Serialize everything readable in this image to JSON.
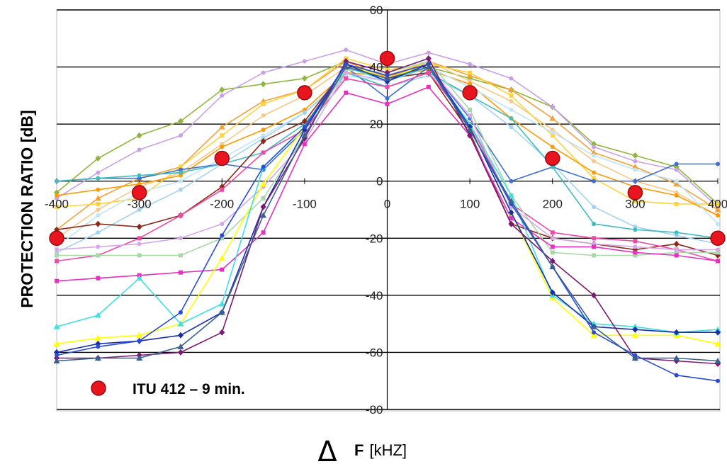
{
  "chart_data": {
    "type": "line",
    "title": "",
    "ylabel": "PROTECTION RATIO [dB]",
    "xlabel_symbol": "Δ",
    "xlabel_var": "F",
    "xlabel_unit": "[kHZ]",
    "xlim": [
      -400,
      400
    ],
    "ylim": [
      -80,
      60
    ],
    "x_ticks": [
      "-400",
      "-300",
      "-200",
      "-100",
      "0",
      "100",
      "200",
      "300",
      "400"
    ],
    "y_ticks": [
      "60",
      "40",
      "20",
      "0",
      "-20",
      "-40",
      "-60",
      "-80"
    ],
    "grid": true,
    "legend": [
      {
        "label": "ITU 412 – 9 min.",
        "color": "#e8141e"
      }
    ],
    "x": [
      -400,
      -350,
      -300,
      -250,
      -200,
      -150,
      -100,
      -50,
      0,
      50,
      100,
      150,
      200,
      250,
      300,
      350,
      400
    ],
    "series": [
      {
        "color": "#8fb63a",
        "marker": "diamond",
        "values": [
          -4,
          8,
          16,
          21,
          32,
          34,
          36,
          42,
          36,
          40,
          36,
          32,
          26,
          13,
          9,
          5,
          -8
        ]
      },
      {
        "color": "#c8a0e6",
        "marker": "circle",
        "values": [
          -6,
          3,
          11,
          16,
          30,
          38,
          42,
          46,
          41,
          45,
          41,
          36,
          26,
          12,
          7,
          4,
          -9
        ]
      },
      {
        "color": "#f4a13a",
        "marker": "triangle",
        "values": [
          -17,
          -6,
          1,
          5,
          19,
          28,
          32,
          42,
          36,
          42,
          37,
          32,
          22,
          10,
          5,
          -1,
          -10
        ]
      },
      {
        "color": "#f7c98a",
        "marker": "circle",
        "values": [
          -20,
          -10,
          -2,
          3,
          13,
          23,
          30,
          40,
          37,
          42,
          35,
          28,
          18,
          7,
          0,
          -4,
          -12
        ]
      },
      {
        "color": "#ffd23c",
        "marker": "square",
        "values": [
          -9,
          -8,
          -6,
          5,
          16,
          27,
          32,
          43,
          39,
          41,
          38,
          30,
          16,
          1,
          -7,
          -8,
          -8
        ]
      },
      {
        "color": "#ff9900",
        "marker": "circle",
        "values": [
          -5,
          -3,
          -1,
          2,
          12,
          18,
          25,
          38,
          37,
          39,
          34,
          22,
          12,
          3,
          -2,
          -5,
          -12
        ]
      },
      {
        "color": "#bfe5f7",
        "marker": "circle",
        "values": [
          -23,
          -12,
          -4,
          0,
          8,
          16,
          24,
          37,
          35,
          40,
          33,
          25,
          17,
          9,
          4,
          0,
          -15
        ]
      },
      {
        "color": "#a3d2f0",
        "marker": "circle",
        "values": [
          -25,
          -18,
          -10,
          -3,
          6,
          15,
          24,
          36,
          33,
          37,
          30,
          19,
          6,
          -9,
          -16,
          -19,
          -22
        ]
      },
      {
        "color": "#3d6fd4",
        "marker": "circle",
        "values": [
          0,
          1,
          1,
          4,
          6,
          4,
          18,
          40,
          29,
          40,
          22,
          0,
          5,
          0,
          0,
          6,
          6
        ]
      },
      {
        "color": "#40bcc0",
        "marker": "circle",
        "values": [
          0,
          1,
          2,
          3,
          6,
          10,
          20,
          38,
          33,
          38,
          30,
          22,
          5,
          -15,
          -17,
          -18,
          -20
        ]
      },
      {
        "color": "#8b2a1a",
        "marker": "diamond",
        "values": [
          -17,
          -15,
          -16,
          -12,
          -2,
          14,
          21,
          40,
          36,
          38,
          17,
          -15,
          -20,
          -22,
          -24,
          -22,
          -26
        ]
      },
      {
        "color": "#f04aa8",
        "marker": "square",
        "values": [
          -28,
          -26,
          -20,
          -12,
          -3,
          10,
          18,
          36,
          33,
          38,
          20,
          -8,
          -18,
          -20,
          -21,
          -24,
          -28
        ]
      },
      {
        "color": "#a8d8a8",
        "marker": "square",
        "values": [
          -26,
          -26,
          -26,
          -26,
          -20,
          -6,
          16,
          39,
          38,
          42,
          25,
          -5,
          -25,
          -26,
          -26,
          -25,
          -25
        ]
      },
      {
        "color": "#d6a8e8",
        "marker": "circle",
        "values": [
          -24,
          -23,
          -22,
          -20,
          -15,
          -2,
          14,
          38,
          35,
          40,
          23,
          -9,
          -20,
          -22,
          -23,
          -24,
          -24
        ]
      },
      {
        "color": "#e530c0",
        "marker": "square",
        "values": [
          -35,
          -34,
          -33,
          -32,
          -31,
          -18,
          13,
          31,
          27,
          33,
          16,
          -13,
          -23,
          -23,
          -25,
          -26,
          -28
        ]
      },
      {
        "color": "#ffff00",
        "marker": "triangle",
        "values": [
          -57,
          -55,
          -54,
          -50,
          -27,
          -1,
          19,
          41,
          36,
          41,
          19,
          -11,
          -41,
          -54,
          -54,
          -54,
          -57
        ]
      },
      {
        "color": "#40e0e0",
        "marker": "triangle",
        "values": [
          -51,
          -47,
          -34,
          -50,
          -43,
          5,
          19,
          40,
          35,
          40,
          20,
          -5,
          -40,
          -50,
          -51,
          -53,
          -52
        ]
      },
      {
        "color": "#1a2fa8",
        "marker": "diamond",
        "values": [
          -60,
          -57,
          -56,
          -54,
          -46,
          -9,
          18,
          41,
          35,
          41,
          19,
          -11,
          -39,
          -51,
          -52,
          -53,
          -53
        ]
      },
      {
        "color": "#7b1a70",
        "marker": "diamond",
        "values": [
          -62,
          -62,
          -61,
          -60,
          -53,
          -9,
          15,
          42,
          38,
          43,
          16,
          -15,
          -28,
          -40,
          -62,
          -63,
          -64
        ]
      },
      {
        "color": "#2a4ad8",
        "marker": "circle",
        "values": [
          -61,
          -58,
          -56,
          -46,
          -19,
          5,
          19,
          41,
          37,
          41,
          18,
          -8,
          -30,
          -53,
          -61,
          -68,
          -70
        ]
      },
      {
        "color": "#3a6090",
        "marker": "triangle",
        "values": [
          -63,
          -62,
          -62,
          -58,
          -46,
          -12,
          16,
          40,
          36,
          40,
          18,
          -7,
          -30,
          -51,
          -62,
          -62,
          -63
        ]
      },
      {
        "color": "#e8141e",
        "marker": "bigdot",
        "name": "ITU 412 – 9 min.",
        "x": [
          -400,
          -300,
          -200,
          -100,
          0,
          100,
          200,
          300,
          400
        ],
        "values": [
          -20,
          -4,
          8,
          31,
          43,
          31,
          8,
          -4,
          -20
        ]
      }
    ]
  }
}
